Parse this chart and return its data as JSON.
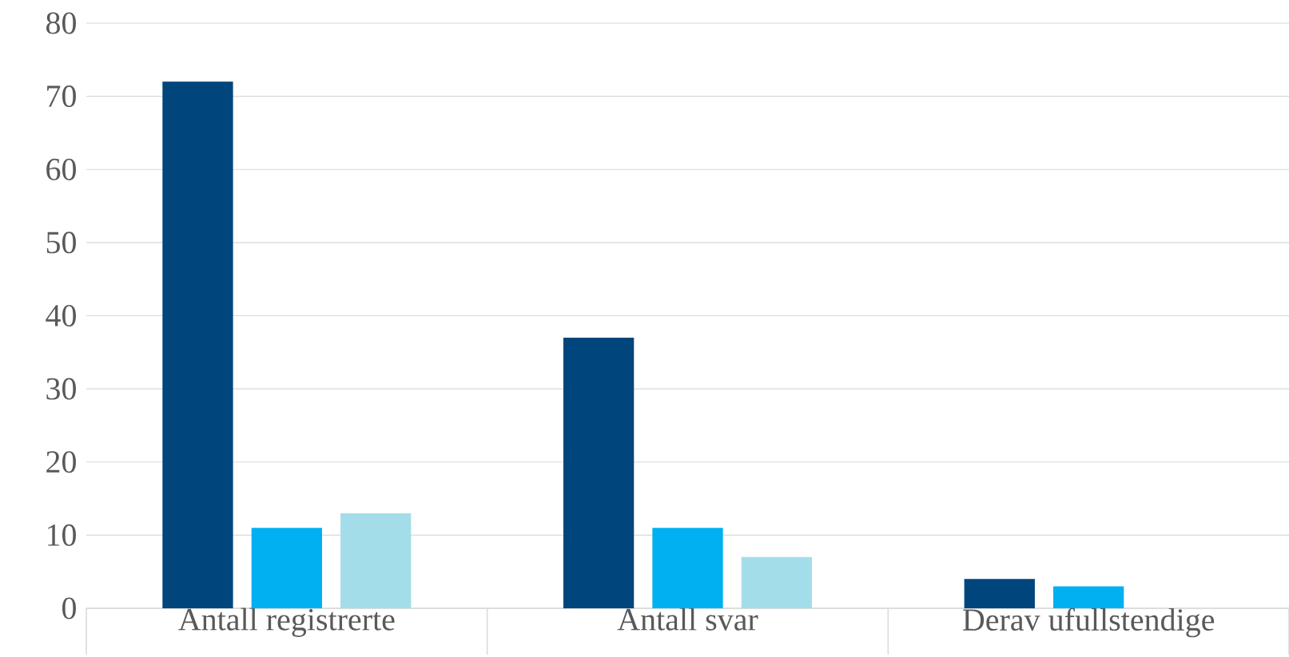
{
  "chart_data": {
    "type": "bar",
    "categories": [
      "Antall registrerte",
      "Antall svar",
      "Derav ufullstendige"
    ],
    "series": [
      {
        "color": "#00457c",
        "values": [
          72,
          37,
          4
        ]
      },
      {
        "color": "#00b0f0",
        "values": [
          11,
          11,
          3
        ]
      },
      {
        "color": "#a3dde9",
        "values": [
          13,
          7,
          null
        ]
      }
    ],
    "ylim": [
      0,
      80
    ],
    "yticks": [
      0,
      10,
      20,
      30,
      40,
      50,
      60,
      70,
      80
    ],
    "grid": "y"
  }
}
